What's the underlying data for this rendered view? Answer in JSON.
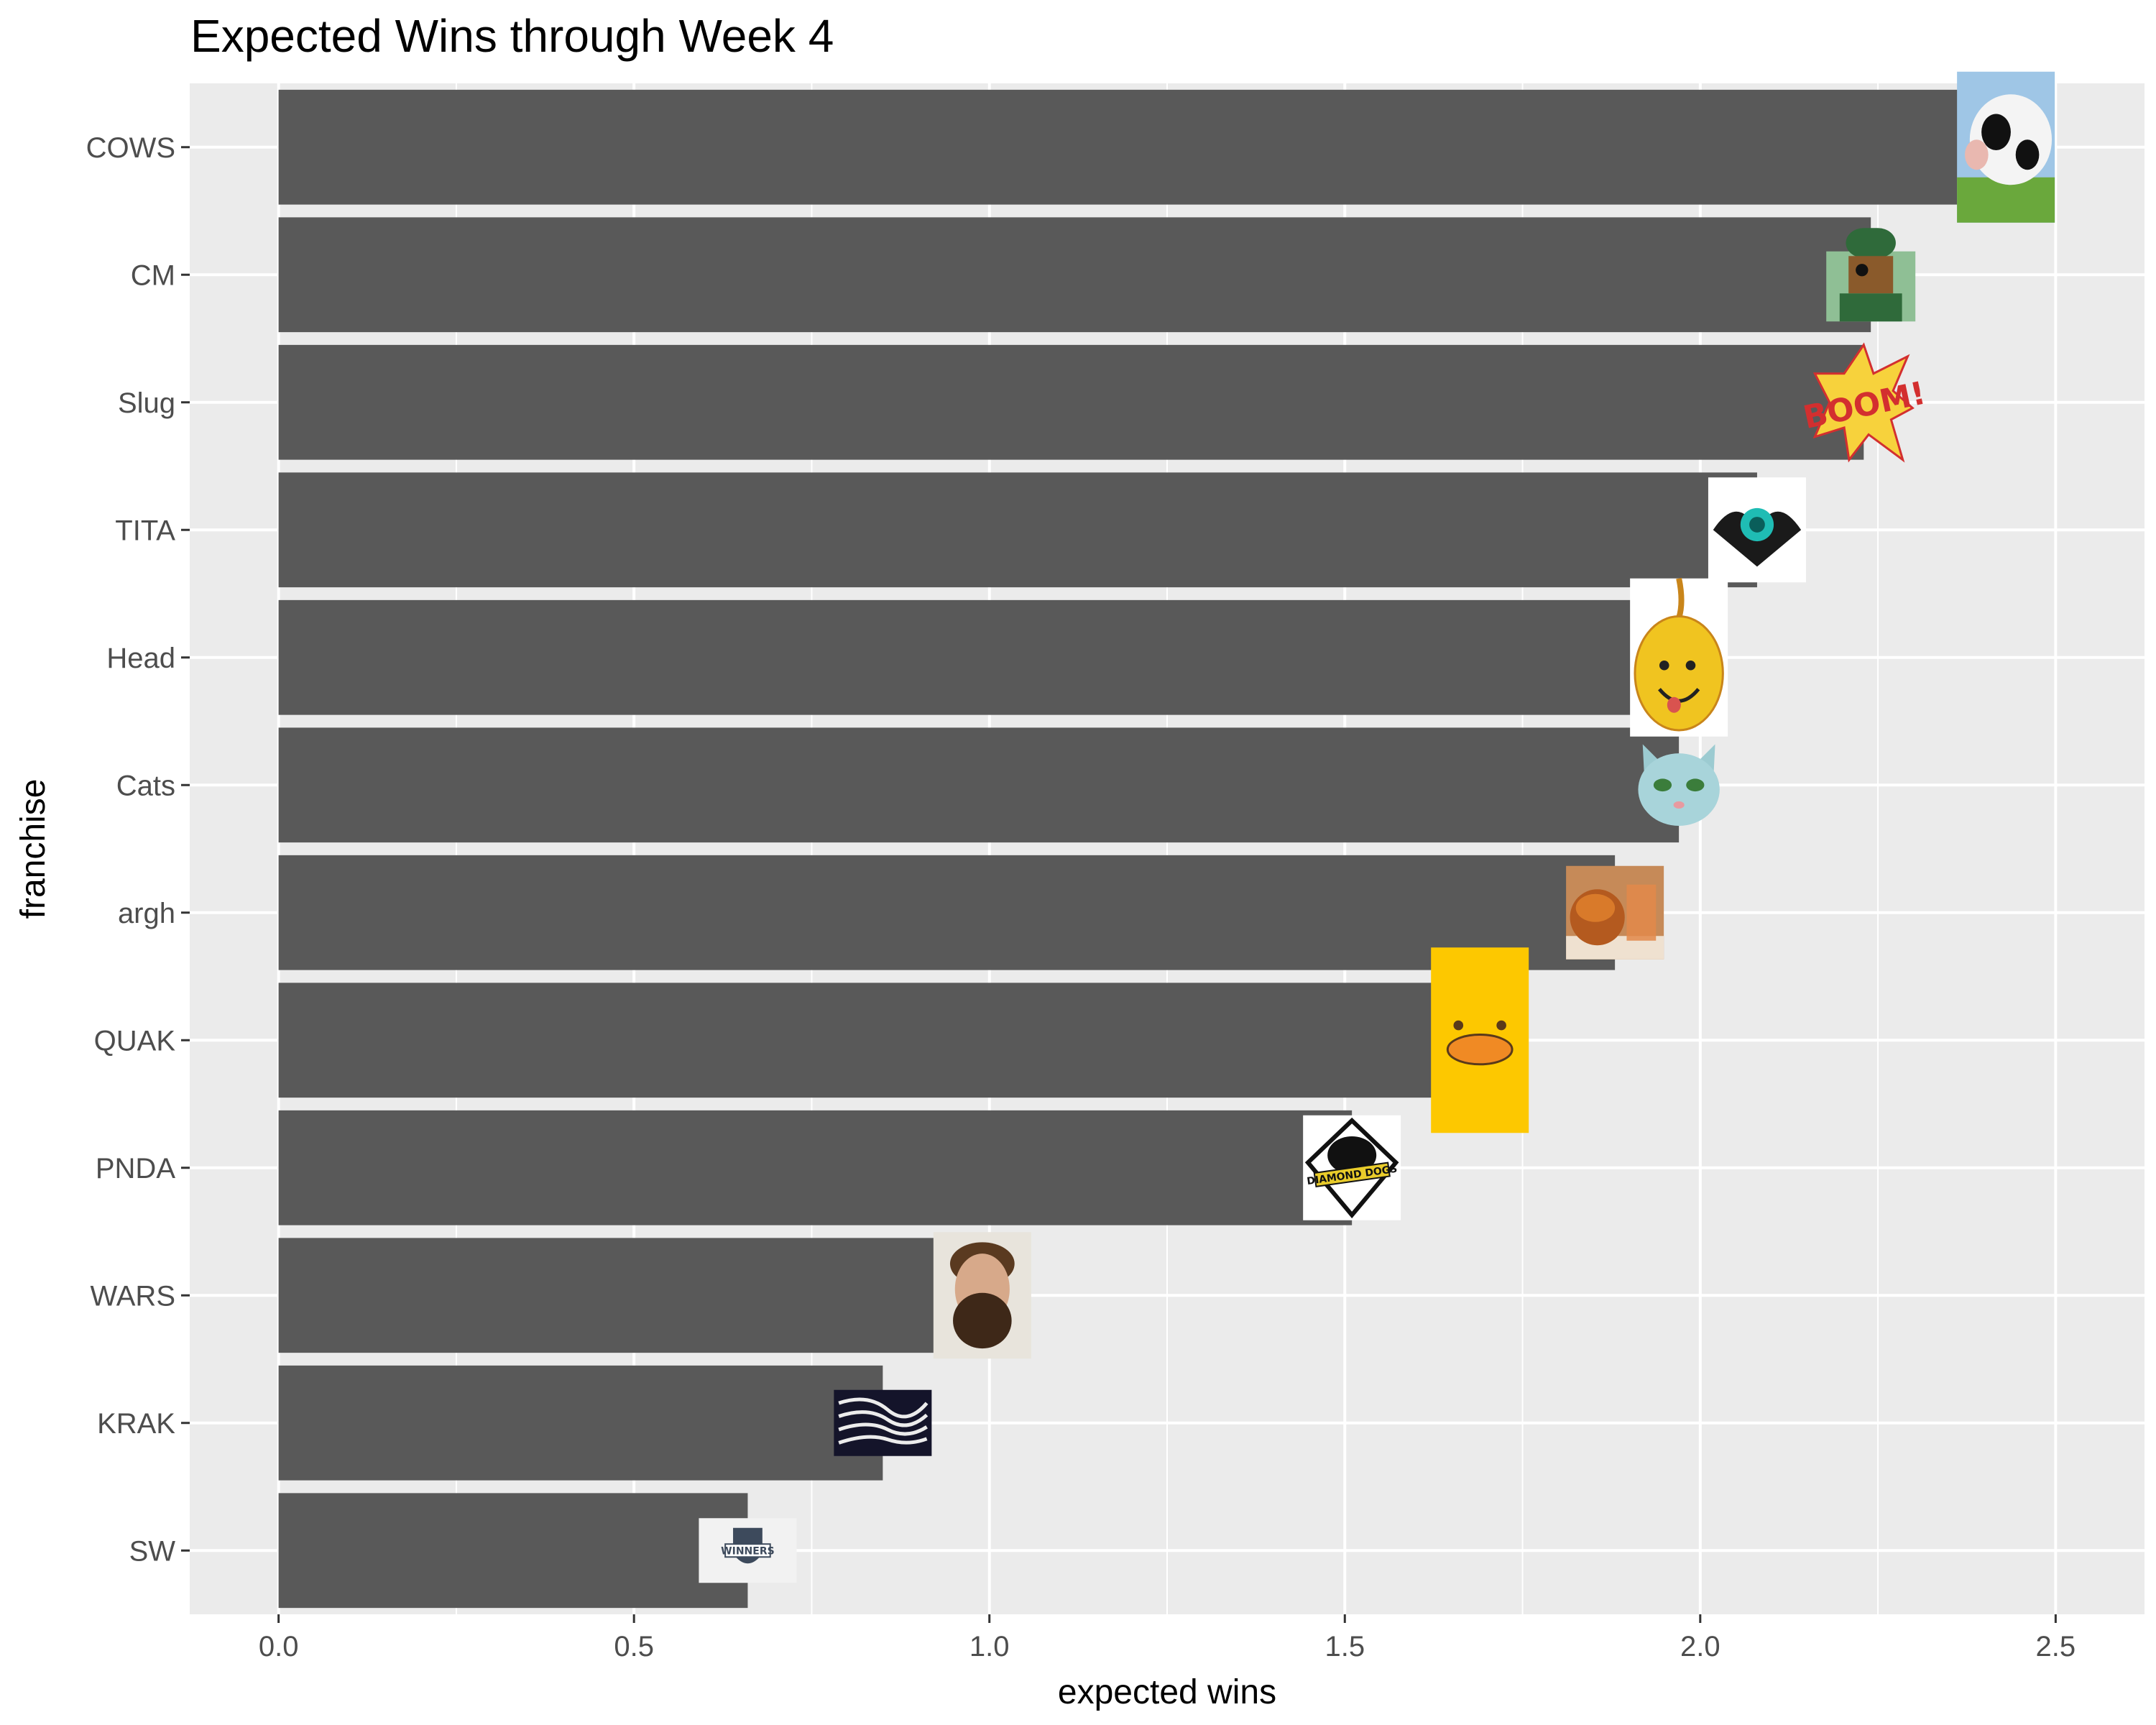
{
  "chart_data": {
    "type": "bar",
    "orientation": "horizontal",
    "title": "Expected Wins through Week 4",
    "xlabel": "expected wins",
    "ylabel": "franchise",
    "xlim": [
      -0.125,
      2.625
    ],
    "x_ticks": [
      "0.0",
      "0.5",
      "1.0",
      "1.5",
      "2.0",
      "2.5"
    ],
    "grid": true,
    "legend": "none",
    "bar_color": "#595959",
    "panel_background": "#ebebeb",
    "categories": [
      "COWS",
      "CM",
      "Slug",
      "TITA",
      "Head",
      "Cats",
      "argh",
      "QUAK",
      "PNDA",
      "WARS",
      "KRAK",
      "SW"
    ],
    "values": [
      2.43,
      2.24,
      2.23,
      2.08,
      1.97,
      1.97,
      1.88,
      1.69,
      1.51,
      0.99,
      0.85,
      0.66
    ],
    "logos": [
      {
        "category": "COWS",
        "icon": "cow-photo-icon"
      },
      {
        "category": "CM",
        "icon": "pirate-character-icon"
      },
      {
        "category": "Slug",
        "icon": "boom-comic-icon"
      },
      {
        "category": "TITA",
        "icon": "winged-skull-icon"
      },
      {
        "category": "Head",
        "icon": "onion-face-icon"
      },
      {
        "category": "Cats",
        "icon": "cat-face-icon"
      },
      {
        "category": "argh",
        "icon": "food-photo-icon"
      },
      {
        "category": "QUAK",
        "icon": "yellow-duck-icon"
      },
      {
        "category": "PNDA",
        "icon": "diamond-dogs-icon"
      },
      {
        "category": "WARS",
        "icon": "bearded-man-photo-icon"
      },
      {
        "category": "KRAK",
        "icon": "kraken-icon"
      },
      {
        "category": "SW",
        "icon": "winners-shield-icon"
      }
    ],
    "logo_text": {
      "Slug": "BOOM!",
      "PNDA": "DIAMOND DOGS",
      "SW": "WINNERS"
    }
  }
}
